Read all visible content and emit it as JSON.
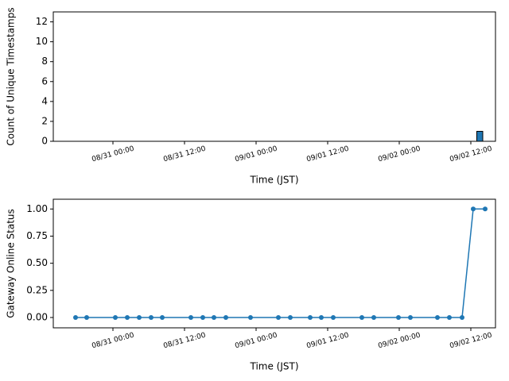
{
  "chart_data": [
    {
      "type": "histogram",
      "y_label": "Count of Unique Timestamps",
      "x_label": "Time (JST)",
      "bins": [
        "09/02 13:00",
        "09/02 14:00"
      ],
      "counts": [
        1
      ],
      "color": "#1f77b4",
      "edgecolor": "#000000",
      "xlim": [
        "08/30 14:00",
        "09/02 16:08"
      ],
      "xticks": [
        "08/31 00:00",
        "08/31 12:00",
        "09/01 00:00",
        "09/01 12:00",
        "09/02 00:00",
        "09/02 12:00"
      ],
      "ylim": [
        0,
        13
      ],
      "yticks": [
        0,
        2,
        4,
        6,
        8,
        10,
        12
      ]
    },
    {
      "type": "line",
      "y_label": "Gateway Online Status",
      "x_label": "Time (JST)",
      "x": [
        "08/30 17:44",
        "08/30 19:36",
        "08/31 00:24",
        "08/31 02:24",
        "08/31 04:24",
        "08/31 06:24",
        "08/31 08:16",
        "08/31 13:04",
        "08/31 15:04",
        "08/31 16:56",
        "08/31 18:56",
        "08/31 23:04",
        "09/01 03:44",
        "09/01 05:44",
        "09/01 09:04",
        "09/01 10:56",
        "09/01 12:56",
        "09/01 17:44",
        "09/01 19:44",
        "09/01 23:52",
        "09/02 01:52",
        "09/02 06:24",
        "09/02 08:24",
        "09/02 10:32",
        "09/02 12:24",
        "09/02 14:24"
      ],
      "values": [
        0,
        0,
        0,
        0,
        0,
        0,
        0,
        0,
        0,
        0,
        0,
        0,
        0,
        0,
        0,
        0,
        0,
        0,
        0,
        0,
        0,
        0,
        0,
        0,
        1,
        1
      ],
      "color": "#1f77b4",
      "marker": "o",
      "xlim": [
        "08/30 14:00",
        "09/02 16:08"
      ],
      "xticks": [
        "08/31 00:00",
        "08/31 12:00",
        "09/01 00:00",
        "09/01 12:00",
        "09/02 00:00",
        "09/02 12:00"
      ],
      "ylim": [
        -0.095,
        1.09
      ],
      "yticks": [
        {
          "value": 0,
          "label": "0.00"
        },
        {
          "value": 0.25,
          "label": "0.25"
        },
        {
          "value": 0.5,
          "label": "0.50"
        },
        {
          "value": 0.75,
          "label": "0.75"
        },
        {
          "value": 1,
          "label": "1.00"
        }
      ]
    }
  ]
}
